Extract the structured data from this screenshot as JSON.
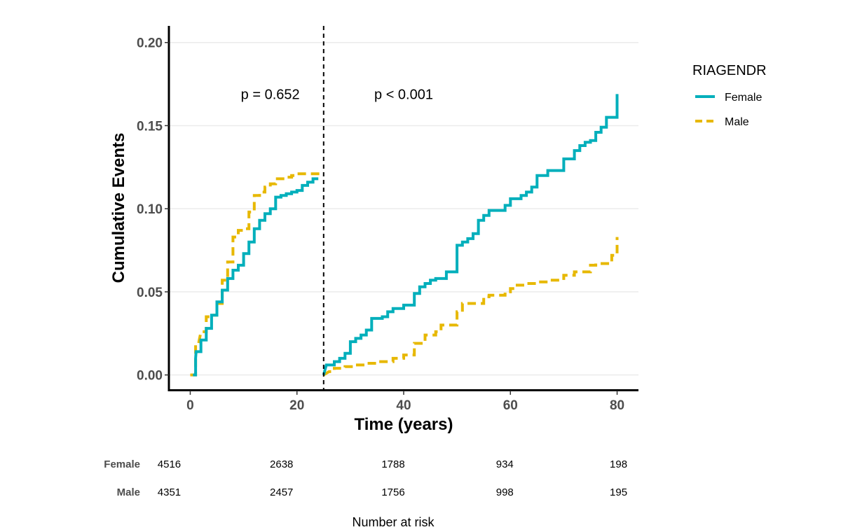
{
  "chart_data": {
    "type": "line",
    "step": true,
    "xlabel": "Time (years)",
    "ylabel": "Cumulative Events",
    "xlim": [
      -4,
      84
    ],
    "ylim": [
      -0.009,
      0.21
    ],
    "xticks": [
      0,
      20,
      40,
      60,
      80
    ],
    "yticks": [
      0.0,
      0.05,
      0.1,
      0.15,
      0.2
    ],
    "ytick_labels": [
      "0.00",
      "0.05",
      "0.10",
      "0.15",
      "0.20"
    ],
    "grid": "horizontal",
    "cutpoint": 25,
    "annotations": [
      {
        "text": "p = 0.652",
        "x": 15,
        "y": 0.169
      },
      {
        "text": "p < 0.001",
        "x": 40,
        "y": 0.169
      }
    ],
    "legend": {
      "title": "RIAGENDR",
      "position": "right"
    },
    "series": [
      {
        "name": "Female",
        "color": "#00AFBB",
        "dash": "solid",
        "segments": [
          [
            [
              0.5,
              0
            ],
            [
              1,
              0
            ],
            [
              1,
              0.01
            ],
            [
              1.1,
              0.014
            ],
            [
              2,
              0.014
            ],
            [
              2,
              0.021
            ],
            [
              3,
              0.021
            ],
            [
              3,
              0.028
            ],
            [
              4,
              0.028
            ],
            [
              4,
              0.036
            ],
            [
              5,
              0.036
            ],
            [
              5,
              0.044
            ],
            [
              6,
              0.044
            ],
            [
              6,
              0.051
            ],
            [
              7,
              0.051
            ],
            [
              7,
              0.058
            ],
            [
              8,
              0.058
            ],
            [
              8,
              0.063
            ],
            [
              9,
              0.063
            ],
            [
              9,
              0.066
            ],
            [
              10,
              0.066
            ],
            [
              10,
              0.073
            ],
            [
              11,
              0.073
            ],
            [
              11,
              0.08
            ],
            [
              12,
              0.08
            ],
            [
              12,
              0.088
            ],
            [
              13,
              0.088
            ],
            [
              13,
              0.093
            ],
            [
              14,
              0.093
            ],
            [
              14,
              0.097
            ],
            [
              15,
              0.097
            ],
            [
              15,
              0.1
            ],
            [
              16,
              0.1
            ],
            [
              16,
              0.107
            ],
            [
              17,
              0.107
            ],
            [
              17,
              0.108
            ],
            [
              18,
              0.108
            ],
            [
              18,
              0.109
            ],
            [
              19,
              0.109
            ],
            [
              19,
              0.11
            ],
            [
              20,
              0.11
            ],
            [
              20,
              0.111
            ],
            [
              21,
              0.111
            ],
            [
              21,
              0.114
            ],
            [
              22,
              0.114
            ],
            [
              22,
              0.116
            ],
            [
              23,
              0.116
            ],
            [
              23,
              0.118
            ],
            [
              24,
              0.118
            ]
          ],
          [
            [
              25,
              0
            ],
            [
              25.5,
              0.006
            ],
            [
              27,
              0.006
            ],
            [
              27,
              0.008
            ],
            [
              28,
              0.008
            ],
            [
              28,
              0.01
            ],
            [
              29,
              0.01
            ],
            [
              29,
              0.013
            ],
            [
              30,
              0.013
            ],
            [
              30,
              0.02
            ],
            [
              31,
              0.02
            ],
            [
              31,
              0.022
            ],
            [
              32,
              0.022
            ],
            [
              32,
              0.024
            ],
            [
              33,
              0.024
            ],
            [
              33,
              0.027
            ],
            [
              34,
              0.027
            ],
            [
              34,
              0.034
            ],
            [
              36,
              0.034
            ],
            [
              36,
              0.035
            ],
            [
              37,
              0.035
            ],
            [
              37,
              0.038
            ],
            [
              38,
              0.038
            ],
            [
              38,
              0.04
            ],
            [
              40,
              0.04
            ],
            [
              40,
              0.042
            ],
            [
              42,
              0.042
            ],
            [
              42,
              0.049
            ],
            [
              43,
              0.049
            ],
            [
              43,
              0.053
            ],
            [
              44,
              0.053
            ],
            [
              44,
              0.055
            ],
            [
              45,
              0.055
            ],
            [
              45,
              0.057
            ],
            [
              46,
              0.057
            ],
            [
              46,
              0.058
            ],
            [
              48,
              0.058
            ],
            [
              48,
              0.062
            ],
            [
              50,
              0.062
            ],
            [
              50,
              0.078
            ],
            [
              51,
              0.078
            ],
            [
              51,
              0.08
            ],
            [
              52,
              0.08
            ],
            [
              52,
              0.082
            ],
            [
              53,
              0.082
            ],
            [
              53,
              0.085
            ],
            [
              54,
              0.085
            ],
            [
              54,
              0.093
            ],
            [
              55,
              0.093
            ],
            [
              55,
              0.096
            ],
            [
              56,
              0.096
            ],
            [
              56,
              0.099
            ],
            [
              59,
              0.099
            ],
            [
              59,
              0.102
            ],
            [
              60,
              0.102
            ],
            [
              60,
              0.106
            ],
            [
              62,
              0.106
            ],
            [
              62,
              0.108
            ],
            [
              63,
              0.108
            ],
            [
              63,
              0.11
            ],
            [
              64,
              0.11
            ],
            [
              64,
              0.113
            ],
            [
              65,
              0.113
            ],
            [
              65,
              0.12
            ],
            [
              67,
              0.12
            ],
            [
              67,
              0.123
            ],
            [
              70,
              0.123
            ],
            [
              70,
              0.13
            ],
            [
              72,
              0.13
            ],
            [
              72,
              0.135
            ],
            [
              73,
              0.135
            ],
            [
              73,
              0.138
            ],
            [
              74,
              0.138
            ],
            [
              74,
              0.14
            ],
            [
              75,
              0.14
            ],
            [
              75,
              0.141
            ],
            [
              76,
              0.141
            ],
            [
              76,
              0.146
            ],
            [
              77,
              0.146
            ],
            [
              77,
              0.149
            ],
            [
              78,
              0.149
            ],
            [
              78,
              0.155
            ],
            [
              80,
              0.155
            ],
            [
              80,
              0.169
            ]
          ]
        ]
      },
      {
        "name": "Male",
        "color": "#E7B800",
        "dash": "dashed",
        "segments": [
          [
            [
              0,
              0
            ],
            [
              1,
              0
            ],
            [
              1,
              0.018
            ],
            [
              1.5,
              0.018
            ],
            [
              2,
              0.026
            ],
            [
              3,
              0.026
            ],
            [
              3,
              0.035
            ],
            [
              4,
              0.035
            ],
            [
              4,
              0.036
            ],
            [
              5,
              0.036
            ],
            [
              5,
              0.043
            ],
            [
              6,
              0.043
            ],
            [
              6,
              0.057
            ],
            [
              7,
              0.057
            ],
            [
              7,
              0.068
            ],
            [
              8,
              0.068
            ],
            [
              8,
              0.083
            ],
            [
              9,
              0.083
            ],
            [
              9,
              0.087
            ],
            [
              10,
              0.087
            ],
            [
              10,
              0.088
            ],
            [
              11,
              0.088
            ],
            [
              11,
              0.098
            ],
            [
              12,
              0.098
            ],
            [
              12,
              0.108
            ],
            [
              13,
              0.108
            ],
            [
              13,
              0.11
            ],
            [
              14,
              0.11
            ],
            [
              14,
              0.113
            ],
            [
              15,
              0.113
            ],
            [
              15,
              0.115
            ],
            [
              16,
              0.115
            ],
            [
              16,
              0.118
            ],
            [
              18,
              0.118
            ],
            [
              18,
              0.119
            ],
            [
              19,
              0.119
            ],
            [
              19,
              0.12
            ],
            [
              20,
              0.12
            ],
            [
              20,
              0.121
            ],
            [
              24.5,
              0.121
            ]
          ],
          [
            [
              25,
              0
            ],
            [
              25.5,
              0.001
            ],
            [
              26,
              0.002
            ],
            [
              27,
              0.002
            ],
            [
              27,
              0.004
            ],
            [
              29,
              0.004
            ],
            [
              29,
              0.005
            ],
            [
              31,
              0.005
            ],
            [
              31,
              0.006
            ],
            [
              33,
              0.006
            ],
            [
              33,
              0.007
            ],
            [
              35,
              0.007
            ],
            [
              35,
              0.008
            ],
            [
              38,
              0.008
            ],
            [
              38,
              0.01
            ],
            [
              40,
              0.01
            ],
            [
              40,
              0.012
            ],
            [
              42,
              0.012
            ],
            [
              42,
              0.019
            ],
            [
              44,
              0.019
            ],
            [
              44,
              0.024
            ],
            [
              46,
              0.024
            ],
            [
              46,
              0.026
            ],
            [
              47,
              0.026
            ],
            [
              47,
              0.03
            ],
            [
              50,
              0.03
            ],
            [
              50,
              0.038
            ],
            [
              51,
              0.038
            ],
            [
              51,
              0.043
            ],
            [
              55,
              0.043
            ],
            [
              55,
              0.047
            ],
            [
              56,
              0.047
            ],
            [
              56,
              0.048
            ],
            [
              59,
              0.048
            ],
            [
              59,
              0.05
            ],
            [
              60,
              0.05
            ],
            [
              60,
              0.052
            ],
            [
              61,
              0.052
            ],
            [
              61,
              0.054
            ],
            [
              63,
              0.054
            ],
            [
              63,
              0.055
            ],
            [
              65,
              0.055
            ],
            [
              65,
              0.056
            ],
            [
              67,
              0.056
            ],
            [
              67,
              0.057
            ],
            [
              70,
              0.057
            ],
            [
              70,
              0.06
            ],
            [
              72,
              0.06
            ],
            [
              72,
              0.062
            ],
            [
              75,
              0.062
            ],
            [
              75,
              0.066
            ],
            [
              76,
              0.066
            ],
            [
              76,
              0.067
            ],
            [
              79,
              0.067
            ],
            [
              79,
              0.072
            ],
            [
              80,
              0.072
            ],
            [
              80,
              0.083
            ]
          ]
        ]
      }
    ],
    "risk_table": {
      "title": "Number at risk",
      "times": [
        0,
        20,
        40,
        60,
        80
      ],
      "rows": [
        {
          "name": "Female",
          "values": [
            "4516",
            "2638",
            "1788",
            "934",
            "198"
          ]
        },
        {
          "name": "Male",
          "values": [
            "4351",
            "2457",
            "1756",
            "998",
            "195"
          ]
        }
      ]
    }
  }
}
